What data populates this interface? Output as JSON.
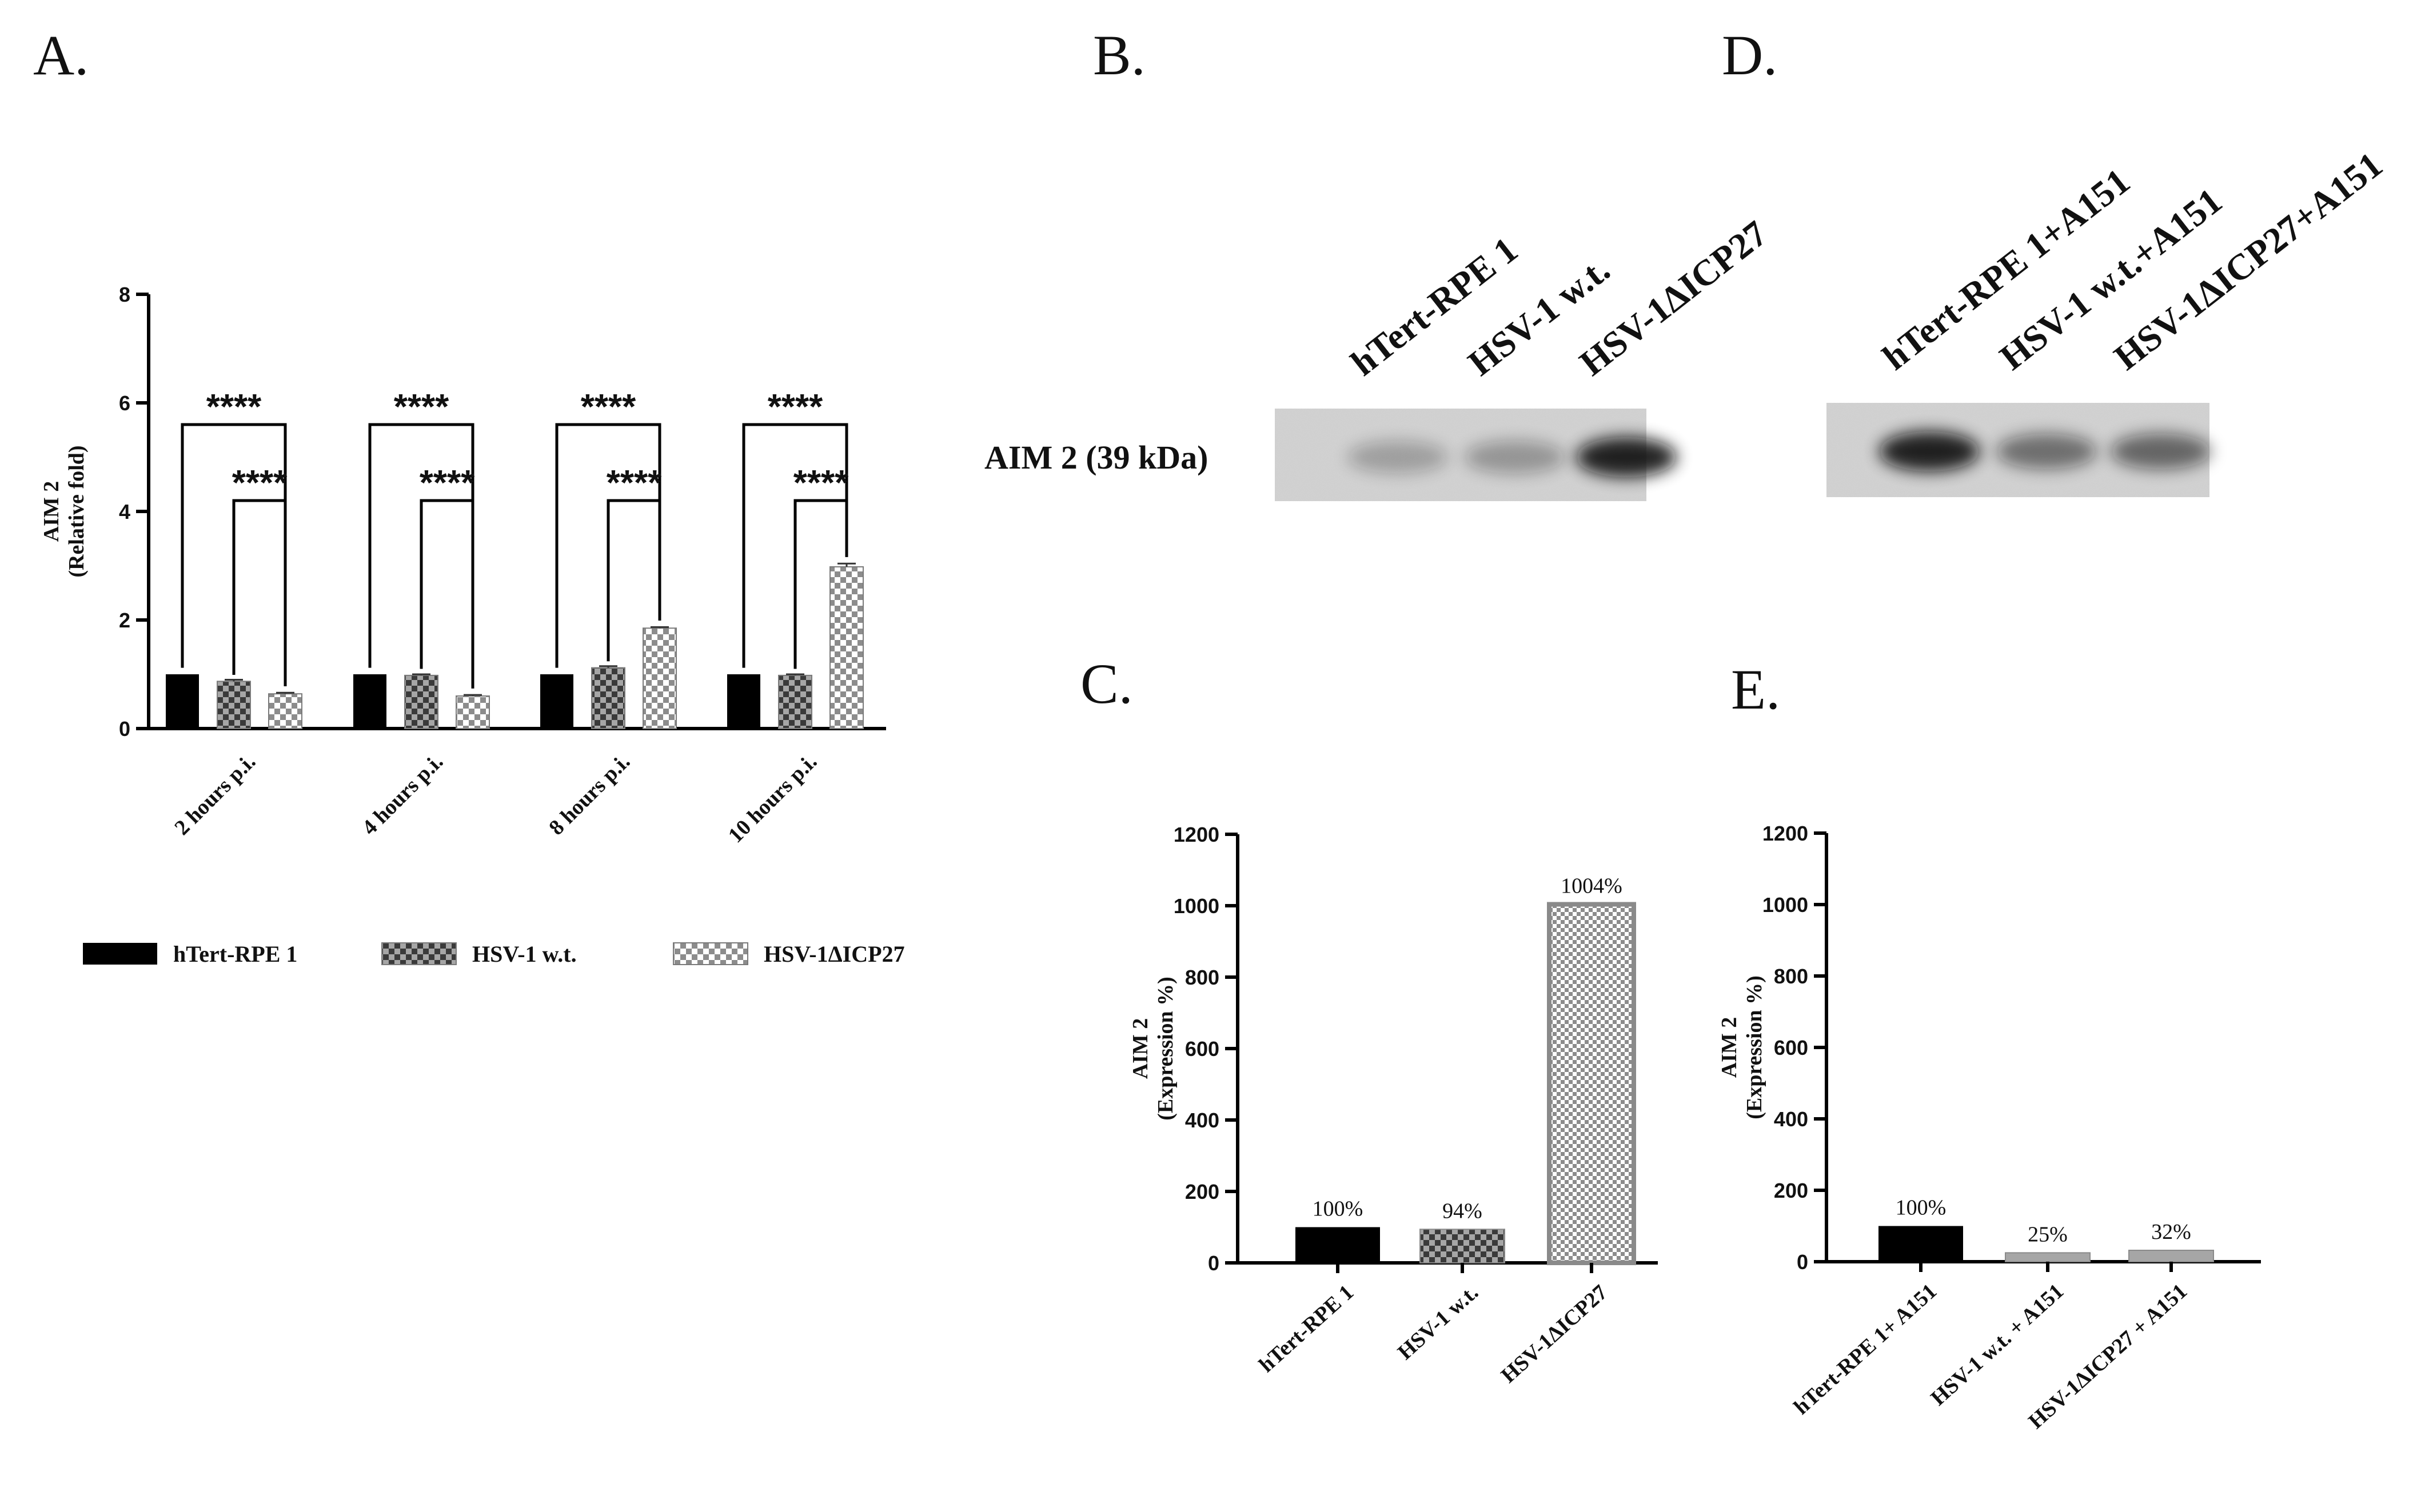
{
  "panels": {
    "A": "A.",
    "B": "B.",
    "C": "C.",
    "D": "D.",
    "E": "E."
  },
  "colors": {
    "black_fill": "#000000",
    "wt_base": "#a6a6a6",
    "wt_check": "#3a3a3a",
    "icp27_base": "#ffffff",
    "icp27_check": "#8c8c8c",
    "bar_outline": "#7a7a7a"
  },
  "legend": {
    "items": [
      {
        "label": "hTert-RPE 1",
        "pattern": "solid-black"
      },
      {
        "label": "HSV-1 w.t.",
        "pattern": "dark-check-on-gray"
      },
      {
        "label": "HSV-1ΔICP27",
        "pattern": "gray-check-on-white"
      }
    ]
  },
  "blots": {
    "B": {
      "row_label": "AIM 2 (39 kDa)",
      "lanes": [
        "hTert-RPE 1",
        "HSV-1 w.t.",
        "HSV-1ΔICP27"
      ],
      "band_intensity": [
        0.25,
        0.3,
        0.9
      ]
    },
    "D": {
      "lanes": [
        "hTert-RPE 1+A151",
        "HSV-1 w.t.+A151",
        "HSV-1ΔICP27+A151"
      ],
      "band_intensity": [
        0.9,
        0.5,
        0.55
      ]
    }
  },
  "chart_data": [
    {
      "panel": "A",
      "type": "bar",
      "ylabel_line1": "AIM 2",
      "ylabel_line2": "(Relative fold)",
      "ylim": [
        0,
        8
      ],
      "yticks": [
        0,
        2,
        4,
        6,
        8
      ],
      "categories": [
        "2 hours p.i.",
        "4 hours p.i.",
        "8 hours p.i.",
        "10 hours p.i."
      ],
      "series": [
        {
          "name": "hTert-RPE 1",
          "values": [
            1.0,
            1.0,
            1.0,
            1.0
          ],
          "errors": [
            0,
            0,
            0,
            0
          ],
          "pattern": "solid-black"
        },
        {
          "name": "HSV-1 w.t.",
          "values": [
            0.87,
            0.98,
            1.12,
            0.98
          ],
          "errors": [
            0.03,
            0.02,
            0.03,
            0.02
          ],
          "pattern": "dark-check-on-gray"
        },
        {
          "name": "HSV-1ΔICP27",
          "values": [
            0.64,
            0.6,
            1.85,
            2.98
          ],
          "errors": [
            0.02,
            0.02,
            0.02,
            0.06
          ],
          "pattern": "gray-check-on-white"
        }
      ],
      "significance": [
        {
          "group": 0,
          "from": 0,
          "to": 2,
          "label": "****",
          "y": 5.6
        },
        {
          "group": 0,
          "from": 1,
          "to": 2,
          "label": "****",
          "y": 4.2
        },
        {
          "group": 1,
          "from": 0,
          "to": 2,
          "label": "****",
          "y": 5.6
        },
        {
          "group": 1,
          "from": 1,
          "to": 2,
          "label": "****",
          "y": 4.2
        },
        {
          "group": 2,
          "from": 0,
          "to": 2,
          "label": "****",
          "y": 5.6
        },
        {
          "group": 2,
          "from": 1,
          "to": 2,
          "label": "****",
          "y": 4.2
        },
        {
          "group": 3,
          "from": 0,
          "to": 2,
          "label": "****",
          "y": 5.6
        },
        {
          "group": 3,
          "from": 1,
          "to": 2,
          "label": "****",
          "y": 4.2
        }
      ]
    },
    {
      "panel": "C",
      "type": "bar",
      "ylabel_line1": "AIM 2",
      "ylabel_line2": "(Expression %)",
      "ylim": [
        0,
        1200
      ],
      "yticks": [
        0,
        200,
        400,
        600,
        800,
        1000,
        1200
      ],
      "categories": [
        "hTert-RPE 1",
        "HSV-1 w.t.",
        "HSV-1ΔICP27"
      ],
      "values": [
        100,
        94,
        1004
      ],
      "data_labels": [
        "100%",
        "94%",
        "1004%"
      ],
      "patterns": [
        "solid-black",
        "dark-check-on-gray",
        "gray-check-on-white"
      ]
    },
    {
      "panel": "E",
      "type": "bar",
      "ylabel_line1": "AIM 2",
      "ylabel_line2": "(Expression %)",
      "ylim": [
        0,
        1200
      ],
      "yticks": [
        0,
        200,
        400,
        600,
        800,
        1000,
        1200
      ],
      "categories": [
        "hTert-RPE 1+ A151",
        "HSV-1 w.t. + A151",
        "HSV-1ΔICP27 + A151"
      ],
      "values": [
        100,
        25,
        32
      ],
      "data_labels": [
        "100%",
        "25%",
        "32%"
      ],
      "patterns": [
        "solid-black",
        "plain-gray",
        "plain-gray"
      ]
    }
  ]
}
